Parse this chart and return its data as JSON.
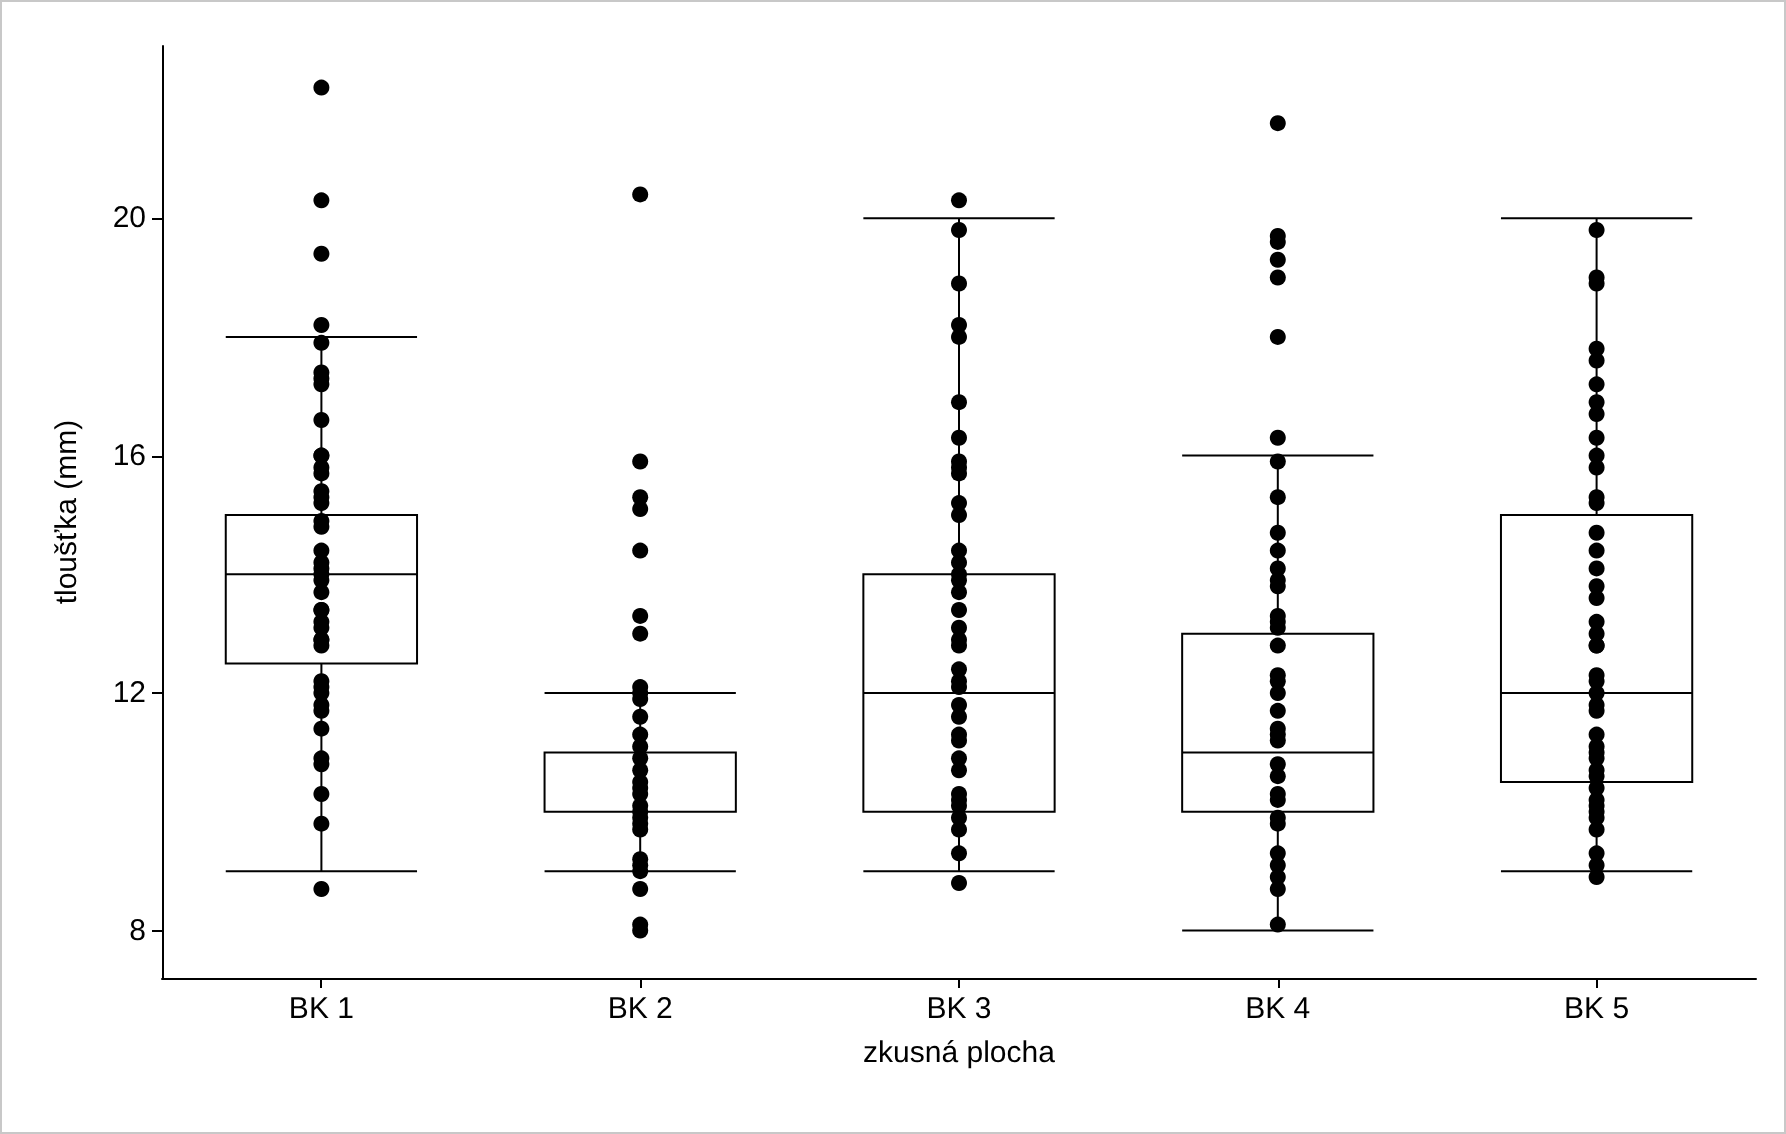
{
  "chart_data": {
    "type": "box",
    "xlabel": "zkusná plocha",
    "ylabel": "tloušťka (mm)",
    "categories": [
      "BK 1",
      "BK 2",
      "BK 3",
      "BK 4",
      "BK 5"
    ],
    "boxes": [
      {
        "low": 9,
        "q1": 12.5,
        "median": 14,
        "q3": 15,
        "high": 18
      },
      {
        "low": 9,
        "q1": 10,
        "median": 10,
        "q3": 11,
        "high": 12
      },
      {
        "low": 9,
        "q1": 10,
        "median": 12,
        "q3": 14,
        "high": 20
      },
      {
        "low": 8,
        "q1": 10,
        "median": 11,
        "q3": 13,
        "high": 16
      },
      {
        "low": 9,
        "q1": 10.5,
        "median": 12,
        "q3": 15,
        "high": 20
      }
    ],
    "series": [
      {
        "type": "scatter",
        "color": "#000000",
        "marker": "circle",
        "x": [
          "BK 1",
          "BK 1",
          "BK 1",
          "BK 1",
          "BK 1",
          "BK 1",
          "BK 1",
          "BK 1",
          "BK 1",
          "BK 1",
          "BK 1",
          "BK 1",
          "BK 1",
          "BK 1",
          "BK 1",
          "BK 1",
          "BK 1",
          "BK 1",
          "BK 1",
          "BK 1",
          "BK 1",
          "BK 1",
          "BK 1",
          "BK 1",
          "BK 1",
          "BK 1",
          "BK 1",
          "BK 1",
          "BK 1",
          "BK 1",
          "BK 1",
          "BK 1",
          "BK 1",
          "BK 1",
          "BK 1",
          "BK 1",
          "BK 1",
          "BK 1",
          "BK 1",
          "BK 1",
          "BK 1",
          "BK 1",
          "BK 2",
          "BK 2",
          "BK 2",
          "BK 2",
          "BK 2",
          "BK 2",
          "BK 2",
          "BK 2",
          "BK 2",
          "BK 2",
          "BK 2",
          "BK 2",
          "BK 2",
          "BK 2",
          "BK 2",
          "BK 2",
          "BK 2",
          "BK 2",
          "BK 2",
          "BK 2",
          "BK 2",
          "BK 2",
          "BK 2",
          "BK 2",
          "BK 2",
          "BK 2",
          "BK 2",
          "BK 2",
          "BK 2",
          "BK 3",
          "BK 3",
          "BK 3",
          "BK 3",
          "BK 3",
          "BK 3",
          "BK 3",
          "BK 3",
          "BK 3",
          "BK 3",
          "BK 3",
          "BK 3",
          "BK 3",
          "BK 3",
          "BK 3",
          "BK 3",
          "BK 3",
          "BK 3",
          "BK 3",
          "BK 3",
          "BK 3",
          "BK 3",
          "BK 3",
          "BK 3",
          "BK 3",
          "BK 3",
          "BK 3",
          "BK 3",
          "BK 3",
          "BK 3",
          "BK 3",
          "BK 3",
          "BK 3",
          "BK 3",
          "BK 3",
          "BK 3",
          "BK 3",
          "BK 4",
          "BK 4",
          "BK 4",
          "BK 4",
          "BK 4",
          "BK 4",
          "BK 4",
          "BK 4",
          "BK 4",
          "BK 4",
          "BK 4",
          "BK 4",
          "BK 4",
          "BK 4",
          "BK 4",
          "BK 4",
          "BK 4",
          "BK 4",
          "BK 4",
          "BK 4",
          "BK 4",
          "BK 4",
          "BK 4",
          "BK 4",
          "BK 4",
          "BK 4",
          "BK 4",
          "BK 4",
          "BK 4",
          "BK 4",
          "BK 4",
          "BK 4",
          "BK 4",
          "BK 4",
          "BK 4",
          "BK 4",
          "BK 5",
          "BK 5",
          "BK 5",
          "BK 5",
          "BK 5",
          "BK 5",
          "BK 5",
          "BK 5",
          "BK 5",
          "BK 5",
          "BK 5",
          "BK 5",
          "BK 5",
          "BK 5",
          "BK 5",
          "BK 5",
          "BK 5",
          "BK 5",
          "BK 5",
          "BK 5",
          "BK 5",
          "BK 5",
          "BK 5",
          "BK 5",
          "BK 5",
          "BK 5",
          "BK 5",
          "BK 5",
          "BK 5",
          "BK 5",
          "BK 5",
          "BK 5",
          "BK 5",
          "BK 5",
          "BK 5",
          "BK 5",
          "BK 5",
          "BK 5",
          "BK 5",
          "BK 5",
          "BK 5",
          "BK 5"
        ],
        "values": [
          22.2,
          20.3,
          19.4,
          18.2,
          17.9,
          17.4,
          17.3,
          17.2,
          16.6,
          16.0,
          16.0,
          15.8,
          15.7,
          15.4,
          15.3,
          15.2,
          14.9,
          14.8,
          14.4,
          14.2,
          14.1,
          14.0,
          13.9,
          13.7,
          13.4,
          13.2,
          13.1,
          12.9,
          12.8,
          12.2,
          12.1,
          12.0,
          11.8,
          11.7,
          11.4,
          10.9,
          10.8,
          10.3,
          9.8,
          8.7,
          13.4,
          12.9,
          20.4,
          15.9,
          15.3,
          15.1,
          14.4,
          13.3,
          13.0,
          12.1,
          11.9,
          12.0,
          11.6,
          11.3,
          11.1,
          10.9,
          10.7,
          10.4,
          10.3,
          10.1,
          10.0,
          9.8,
          9.7,
          9.2,
          9.1,
          9.0,
          8.7,
          8.1,
          8.0,
          10.5,
          9.9,
          20.3,
          19.8,
          18.9,
          18.2,
          18.0,
          16.9,
          16.3,
          15.9,
          15.8,
          15.7,
          15.2,
          15.0,
          14.4,
          14.2,
          14.0,
          13.9,
          13.7,
          13.4,
          13.1,
          12.9,
          12.8,
          12.4,
          12.2,
          12.1,
          11.8,
          11.6,
          11.3,
          11.2,
          10.9,
          10.7,
          10.3,
          10.2,
          9.9,
          9.7,
          9.3,
          8.8,
          10.1,
          21.6,
          19.7,
          19.6,
          19.3,
          19.0,
          18.0,
          16.3,
          15.9,
          15.3,
          14.7,
          14.4,
          14.1,
          13.9,
          13.8,
          13.3,
          13.2,
          13.1,
          12.8,
          12.3,
          12.2,
          12.0,
          11.7,
          11.4,
          11.3,
          11.2,
          10.8,
          10.6,
          10.3,
          10.2,
          9.9,
          9.8,
          9.3,
          9.1,
          8.9,
          8.7,
          8.1,
          19.8,
          19.0,
          18.9,
          17.8,
          17.6,
          17.2,
          16.9,
          16.7,
          16.3,
          16.0,
          15.8,
          15.3,
          15.2,
          14.7,
          14.4,
          14.1,
          13.8,
          13.6,
          13.2,
          13.0,
          12.8,
          12.3,
          12.2,
          12.0,
          11.8,
          11.7,
          11.3,
          11.1,
          11.0,
          10.9,
          10.7,
          10.6,
          10.4,
          10.2,
          10.1,
          10.0,
          9.9,
          9.7,
          9.3,
          9.1,
          8.9,
          12.8
        ]
      }
    ],
    "ylim": [
      7.2,
      22.9
    ],
    "yticks": [
      8,
      12,
      16,
      20
    ],
    "grid": false
  }
}
